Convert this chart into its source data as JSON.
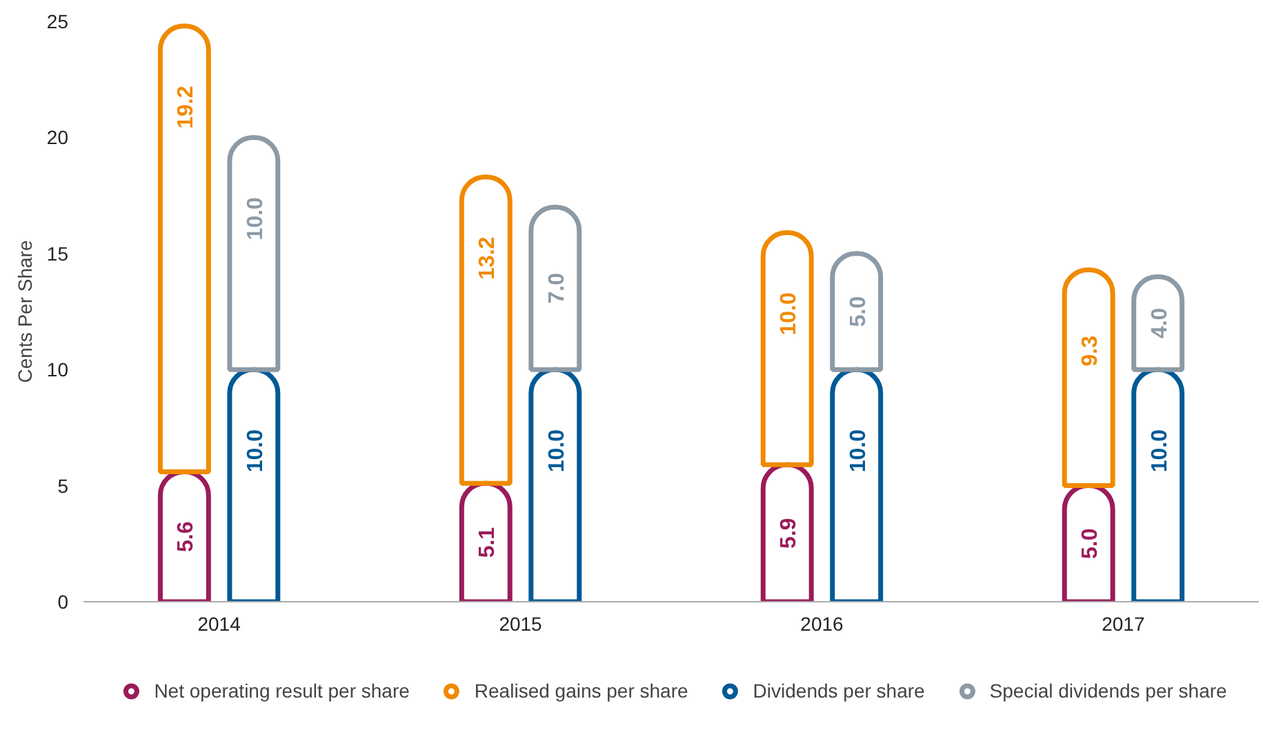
{
  "chart_data": {
    "type": "bar",
    "ylabel": "Cents Per Share",
    "categories": [
      "2014",
      "2015",
      "2016",
      "2017"
    ],
    "ylim": [
      0,
      25
    ],
    "yticks": [
      0,
      5,
      10,
      15,
      20,
      25
    ],
    "legend": "bottom",
    "series": [
      {
        "name": "Net operating result per share",
        "color": "#9b1b5a",
        "values": [
          5.6,
          5.1,
          5.9,
          5.0
        ],
        "value_labels": [
          "5.6",
          "5.1",
          "5.9",
          "5.0"
        ]
      },
      {
        "name": "Realised gains per share",
        "color": "#f08a00",
        "base": [
          5.6,
          5.1,
          5.9,
          5.0
        ],
        "values": [
          19.2,
          13.2,
          10.0,
          9.3
        ],
        "value_labels": [
          "19.2",
          "13.2",
          "10.0",
          "9.3"
        ]
      },
      {
        "name": "Dividends per share",
        "color": "#005a96",
        "values": [
          10.0,
          10.0,
          10.0,
          10.0
        ],
        "value_labels": [
          "10.0",
          "10.0",
          "10.0",
          "10.0"
        ]
      },
      {
        "name": "Special dividends per share",
        "color": "#8c9aa6",
        "base": [
          10.0,
          10.0,
          10.0,
          10.0
        ],
        "values": [
          10.0,
          7.0,
          5.0,
          4.0
        ],
        "value_labels": [
          "10.0",
          "7.0",
          "5.0",
          "4.0"
        ]
      }
    ]
  }
}
